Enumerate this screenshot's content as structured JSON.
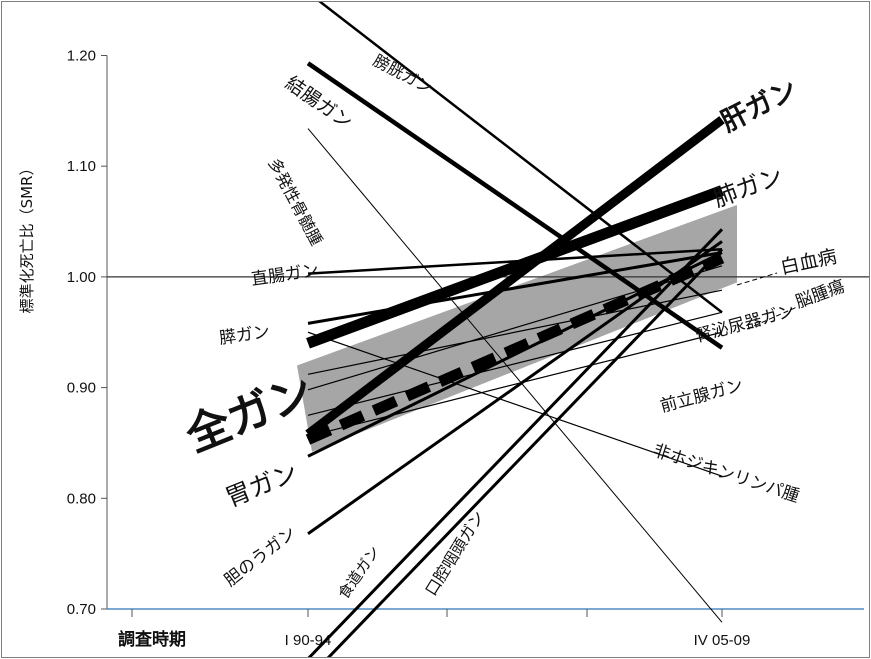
{
  "chart_data": {
    "type": "line",
    "ylabel": "標準化死亡比（SMR）",
    "xlabel": "調査時期",
    "ylim": [
      0.7,
      1.2
    ],
    "yticks": [
      "1.20",
      "1.10",
      "1.00",
      "0.90",
      "0.80",
      "0.70"
    ],
    "x_ticks": [
      "I 90-94",
      "IV 05-09"
    ],
    "reference_value": 1.0,
    "band": {
      "start_range": [
        0.842,
        0.92
      ],
      "end_range": [
        0.995,
        1.065
      ]
    },
    "series": [
      {
        "name": "膀胱ガン",
        "values": [
          1.257,
          0.968
        ]
      },
      {
        "name": "結腸ガン",
        "values": [
          1.193,
          0.936
        ]
      },
      {
        "name": "多発性骨髄腫",
        "values": [
          1.134,
          0.688
        ]
      },
      {
        "name": "肝ガン",
        "values": [
          0.858,
          1.142
        ]
      },
      {
        "name": "肺ガン",
        "values": [
          0.94,
          1.078
        ]
      },
      {
        "name": "直腸ガン",
        "values": [
          1.003,
          1.025
        ]
      },
      {
        "name": "膵ガン",
        "values": [
          0.958,
          1.022
        ]
      },
      {
        "name": "全ガン",
        "values": [
          0.853,
          1.017
        ]
      },
      {
        "name": "胃ガン",
        "values": [
          0.838,
          1.022
        ]
      },
      {
        "name": "白血病",
        "values": [
          0.898,
          1.01
        ]
      },
      {
        "name": "脳腫瘍",
        "values": [
          0.912,
          0.988
        ]
      },
      {
        "name": "腎泌尿器ガン",
        "values": [
          0.875,
          0.968
        ]
      },
      {
        "name": "前立腺ガン",
        "values": [
          0.856,
          0.95
        ]
      },
      {
        "name": "非ホジキンリンパ腫",
        "values": [
          0.95,
          0.82
        ]
      },
      {
        "name": "胆のうガン",
        "values": [
          0.768,
          1.032
        ]
      },
      {
        "name": "食道ガン",
        "values": [
          0.655,
          1.043
        ]
      },
      {
        "name": "口腔咽頭ガン",
        "values": [
          0.637,
          1.025
        ]
      }
    ]
  }
}
